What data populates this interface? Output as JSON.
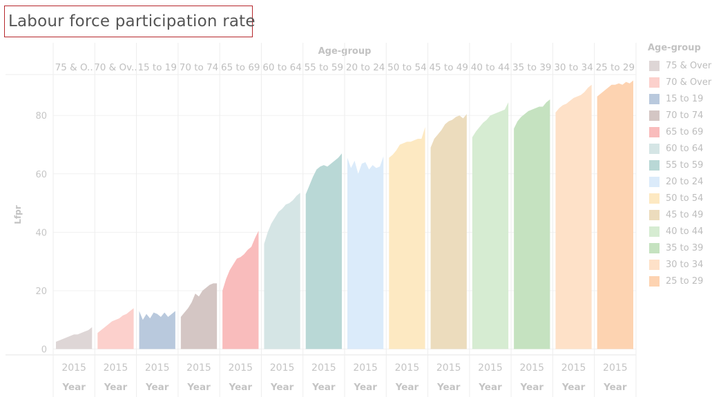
{
  "title": "Labour force participation rate",
  "chart_data": {
    "type": "area",
    "column_header": "Age-group",
    "ylabel": "Lfpr",
    "ylim": [
      -2,
      94
    ],
    "yticks": [
      0,
      20,
      40,
      60,
      80
    ],
    "x_tick_label": "2015",
    "x_axis_label": "Year",
    "grid": true,
    "legend_position": "right",
    "legend_title": "Age-group",
    "panels": [
      {
        "label": "75 & O..",
        "color": "#ded6d6",
        "values": [
          2.5,
          3.0,
          3.5,
          4.0,
          4.5,
          5.0,
          5.0,
          5.5,
          6.0,
          6.5,
          7.5
        ]
      },
      {
        "label": "70 & Ov..",
        "color": "#fcd0cc",
        "values": [
          5.5,
          6.5,
          7.5,
          8.5,
          9.5,
          10.0,
          10.5,
          11.5,
          12.0,
          13.0,
          14.0
        ]
      },
      {
        "label": "15 to 19",
        "color": "#b9c9dd",
        "values": [
          13.0,
          10.0,
          12.0,
          10.5,
          12.5,
          12.0,
          11.0,
          12.5,
          11.0,
          12.0,
          13.0
        ]
      },
      {
        "label": "70 to 74",
        "color": "#d4c6c4",
        "values": [
          11.0,
          12.5,
          14.0,
          16.0,
          19.0,
          18.0,
          20.0,
          21.0,
          22.0,
          22.5,
          22.5
        ]
      },
      {
        "label": "65 to 69",
        "color": "#f9bcbc",
        "values": [
          20.0,
          24.0,
          27.0,
          29.0,
          31.0,
          31.5,
          32.5,
          34.0,
          35.0,
          38.0,
          40.5
        ]
      },
      {
        "label": "60 to 64",
        "color": "#d5e5e5",
        "values": [
          36.0,
          40.0,
          43.0,
          45.0,
          47.0,
          48.0,
          49.5,
          50.0,
          51.0,
          52.5,
          53.5
        ]
      },
      {
        "label": "55 to 59",
        "color": "#b9d8d6",
        "values": [
          53.0,
          56.0,
          59.0,
          61.5,
          62.5,
          63.0,
          62.5,
          63.5,
          64.5,
          65.5,
          67.0
        ]
      },
      {
        "label": "20 to 24",
        "color": "#dbebfa",
        "values": [
          65.5,
          62.0,
          64.5,
          60.0,
          63.5,
          64.0,
          61.5,
          63.0,
          62.0,
          62.5,
          66.0
        ]
      },
      {
        "label": "50 to 54",
        "color": "#fde9c2",
        "values": [
          65.5,
          66.5,
          68.0,
          70.0,
          70.5,
          71.0,
          71.0,
          71.5,
          72.0,
          72.0,
          76.0
        ]
      },
      {
        "label": "45 to 49",
        "color": "#ecdcbd",
        "values": [
          69.0,
          72.0,
          73.5,
          75.0,
          77.0,
          78.0,
          78.5,
          79.5,
          80.0,
          79.0,
          80.5
        ]
      },
      {
        "label": "40 to 44",
        "color": "#d6ecd2",
        "values": [
          72.5,
          74.5,
          76.0,
          77.5,
          78.5,
          80.0,
          80.5,
          81.0,
          81.5,
          82.0,
          84.5
        ]
      },
      {
        "label": "35 to 39",
        "color": "#c5e2c0",
        "values": [
          75.5,
          78.0,
          79.5,
          80.5,
          81.5,
          82.0,
          82.5,
          83.0,
          83.0,
          84.5,
          85.5
        ]
      },
      {
        "label": "30 to 34",
        "color": "#fee1c8",
        "values": [
          81.0,
          82.5,
          83.5,
          84.0,
          85.0,
          86.0,
          86.5,
          87.0,
          88.0,
          89.5,
          90.5
        ]
      },
      {
        "label": "25 to 29",
        "color": "#fdd3b1",
        "values": [
          86.5,
          87.5,
          88.5,
          89.5,
          90.5,
          90.5,
          91.0,
          90.5,
          91.5,
          91.0,
          92.0
        ]
      }
    ],
    "legend": [
      {
        "label": "75 & Over",
        "color": "#ded6d6"
      },
      {
        "label": "70 & Over",
        "color": "#fcd0cc"
      },
      {
        "label": "15 to 19",
        "color": "#b9c9dd"
      },
      {
        "label": "70 to 74",
        "color": "#d4c6c4"
      },
      {
        "label": "65 to 69",
        "color": "#f9bcbc"
      },
      {
        "label": "60 to 64",
        "color": "#d5e5e5"
      },
      {
        "label": "55 to 59",
        "color": "#b9d8d6"
      },
      {
        "label": "20 to 24",
        "color": "#dbebfa"
      },
      {
        "label": "50 to 54",
        "color": "#fde9c2"
      },
      {
        "label": "45 to 49",
        "color": "#ecdcbd"
      },
      {
        "label": "40 to 44",
        "color": "#d6ecd2"
      },
      {
        "label": "35 to 39",
        "color": "#c5e2c0"
      },
      {
        "label": "30 to 34",
        "color": "#fee1c8"
      },
      {
        "label": "25 to 29",
        "color": "#fdd3b1"
      }
    ]
  }
}
